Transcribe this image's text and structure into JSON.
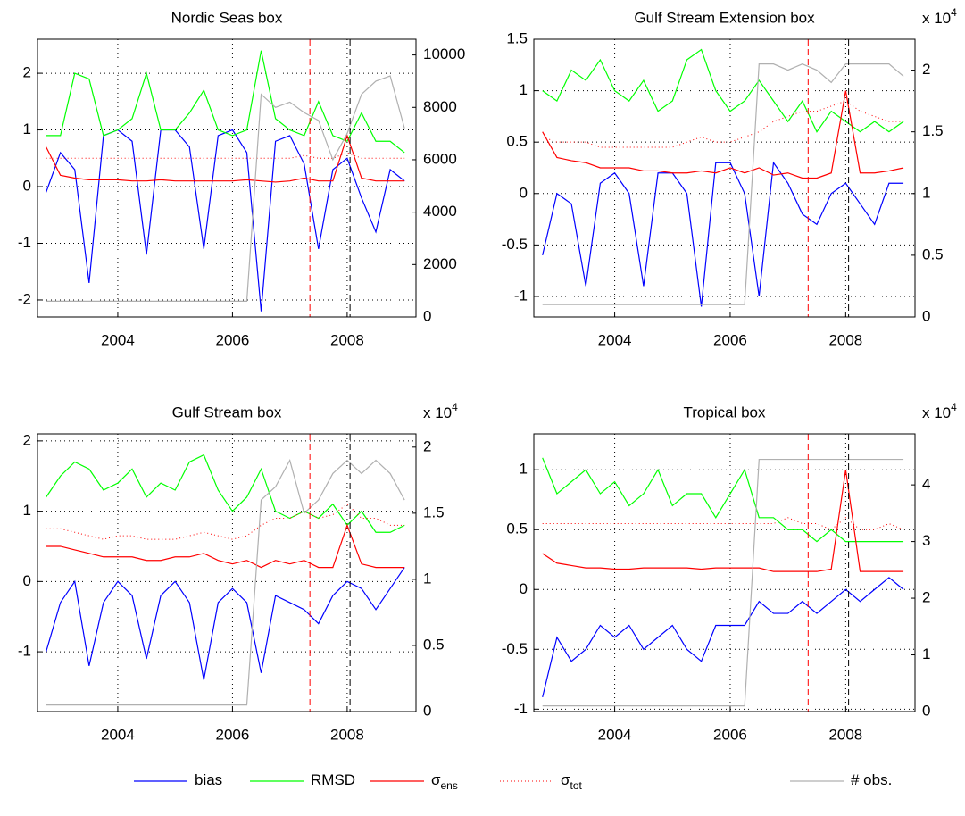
{
  "chart_data": [
    {
      "type": "line",
      "title": "Nordic Seas box",
      "x": [
        2002.75,
        2003,
        2003.25,
        2003.5,
        2003.75,
        2004,
        2004.25,
        2004.5,
        2004.75,
        2005,
        2005.25,
        2005.5,
        2005.75,
        2006,
        2006.25,
        2006.5,
        2006.75,
        2007,
        2007.25,
        2007.5,
        2007.75,
        2008,
        2008.25,
        2008.5,
        2008.75,
        2009
      ],
      "xlim": [
        2002.6,
        2009.2
      ],
      "xticks": [
        2004,
        2006,
        2008
      ],
      "ylim": [
        -2.3,
        2.6
      ],
      "yticks": [
        -2,
        -1,
        0,
        1,
        2
      ],
      "y2lim": [
        0,
        10600
      ],
      "y2ticks": [
        0,
        2000,
        4000,
        6000,
        8000,
        10000
      ],
      "grid": true,
      "legend": "bottom",
      "vlines": [
        {
          "x": 2007.35,
          "color": "#ff0000"
        },
        {
          "x": 2008.05,
          "color": "#000000"
        }
      ],
      "series": [
        {
          "name": "bias",
          "color": "#0000ff",
          "linestyle": "solid",
          "values": [
            -0.1,
            0.6,
            0.3,
            -1.7,
            0.9,
            1.0,
            0.8,
            -1.2,
            1.0,
            1.0,
            0.7,
            -1.1,
            0.9,
            1.0,
            0.6,
            -2.2,
            0.8,
            0.9,
            0.4,
            -1.1,
            0.3,
            0.5,
            -0.2,
            -0.8,
            0.3,
            0.1
          ]
        },
        {
          "name": "RMSD",
          "color": "#00ff00",
          "linestyle": "solid",
          "values": [
            0.9,
            0.9,
            2.0,
            1.9,
            0.9,
            1.0,
            1.2,
            2.0,
            1.0,
            1.0,
            1.3,
            1.7,
            1.0,
            0.9,
            1.0,
            2.4,
            1.2,
            1.0,
            0.9,
            1.5,
            0.9,
            0.8,
            1.3,
            0.8,
            0.8,
            0.6
          ]
        },
        {
          "name": "σ",
          "name_subscript": "ens",
          "color": "#ff0000",
          "linestyle": "solid",
          "values": [
            0.7,
            0.2,
            0.15,
            0.12,
            0.12,
            0.12,
            0.1,
            0.1,
            0.12,
            0.1,
            0.1,
            0.1,
            0.1,
            0.1,
            0.12,
            0.1,
            0.08,
            0.1,
            0.15,
            0.1,
            0.1,
            0.9,
            0.15,
            0.1,
            0.1,
            0.1
          ]
        },
        {
          "name": "σ",
          "name_subscript": "tot",
          "color": "#ff0000",
          "linestyle": "dotted",
          "values": [
            0.5,
            0.5,
            0.5,
            0.5,
            0.5,
            0.5,
            0.5,
            0.5,
            0.5,
            0.5,
            0.5,
            0.5,
            0.5,
            0.5,
            0.5,
            0.5,
            0.5,
            0.5,
            0.55,
            0.5,
            0.5,
            0.6,
            0.5,
            0.5,
            0.5,
            0.5
          ]
        },
        {
          "name": "# obs.",
          "color": "#b0b0b0",
          "linestyle": "solid",
          "axis": "y2",
          "values": [
            600,
            600,
            600,
            600,
            600,
            600,
            600,
            600,
            600,
            600,
            600,
            600,
            600,
            600,
            600,
            8500,
            8000,
            8200,
            7800,
            7500,
            6000,
            7000,
            8500,
            9000,
            9200,
            7200
          ]
        }
      ]
    },
    {
      "type": "line",
      "title": "Gulf Stream Extension box",
      "x": [
        2002.75,
        2003,
        2003.25,
        2003.5,
        2003.75,
        2004,
        2004.25,
        2004.5,
        2004.75,
        2005,
        2005.25,
        2005.5,
        2005.75,
        2006,
        2006.25,
        2006.5,
        2006.75,
        2007,
        2007.25,
        2007.5,
        2007.75,
        2008,
        2008.25,
        2008.5,
        2008.75,
        2009
      ],
      "xlim": [
        2002.6,
        2009.2
      ],
      "xticks": [
        2004,
        2006,
        2008
      ],
      "ylim": [
        -1.2,
        1.5
      ],
      "yticks": [
        -1,
        -0.5,
        0,
        0.5,
        1,
        1.5
      ],
      "y2lim": [
        0,
        2.25
      ],
      "y2ticks": [
        0,
        0.5,
        1,
        1.5,
        2
      ],
      "y2_multiplier": {
        "base": "x 10",
        "exponent": "4"
      },
      "grid": true,
      "vlines": [
        {
          "x": 2007.35,
          "color": "#ff0000"
        },
        {
          "x": 2008.05,
          "color": "#000000"
        }
      ],
      "series": [
        {
          "name": "bias",
          "color": "#0000ff",
          "linestyle": "solid",
          "values": [
            -0.6,
            0.0,
            -0.1,
            -0.9,
            0.1,
            0.2,
            0.0,
            -0.9,
            0.2,
            0.2,
            0.0,
            -1.1,
            0.3,
            0.3,
            0.0,
            -1.0,
            0.3,
            0.1,
            -0.2,
            -0.3,
            0.0,
            0.1,
            -0.1,
            -0.3,
            0.1,
            0.1
          ]
        },
        {
          "name": "RMSD",
          "color": "#00ff00",
          "linestyle": "solid",
          "values": [
            1.0,
            0.9,
            1.2,
            1.1,
            1.3,
            1.0,
            0.9,
            1.1,
            0.8,
            0.9,
            1.3,
            1.4,
            1.0,
            0.8,
            0.9,
            1.1,
            0.9,
            0.7,
            0.9,
            0.6,
            0.8,
            0.7,
            0.6,
            0.7,
            0.6,
            0.7
          ]
        },
        {
          "name": "σ",
          "name_subscript": "ens",
          "color": "#ff0000",
          "linestyle": "solid",
          "values": [
            0.6,
            0.35,
            0.32,
            0.3,
            0.25,
            0.25,
            0.25,
            0.22,
            0.22,
            0.2,
            0.2,
            0.22,
            0.2,
            0.25,
            0.2,
            0.25,
            0.18,
            0.2,
            0.15,
            0.15,
            0.2,
            1.0,
            0.2,
            0.2,
            0.22,
            0.25
          ]
        },
        {
          "name": "σ",
          "name_subscript": "tot",
          "color": "#ff0000",
          "linestyle": "dotted",
          "values": [
            0.55,
            0.5,
            0.5,
            0.5,
            0.45,
            0.45,
            0.45,
            0.45,
            0.45,
            0.45,
            0.5,
            0.55,
            0.5,
            0.5,
            0.55,
            0.6,
            0.7,
            0.75,
            0.8,
            0.8,
            0.85,
            0.9,
            0.8,
            0.75,
            0.7,
            0.7
          ]
        },
        {
          "name": "# obs.",
          "color": "#b0b0b0",
          "linestyle": "solid",
          "axis": "y2",
          "values": [
            0.1,
            0.1,
            0.1,
            0.1,
            0.1,
            0.1,
            0.1,
            0.1,
            0.1,
            0.1,
            0.1,
            0.1,
            0.1,
            0.1,
            0.1,
            2.05,
            2.05,
            2.0,
            2.05,
            2.0,
            1.9,
            2.05,
            2.05,
            2.05,
            2.05,
            1.95
          ]
        }
      ]
    },
    {
      "type": "line",
      "title": "Gulf Stream box",
      "x": [
        2002.75,
        2003,
        2003.25,
        2003.5,
        2003.75,
        2004,
        2004.25,
        2004.5,
        2004.75,
        2005,
        2005.25,
        2005.5,
        2005.75,
        2006,
        2006.25,
        2006.5,
        2006.75,
        2007,
        2007.25,
        2007.5,
        2007.75,
        2008,
        2008.25,
        2008.5,
        2008.75,
        2009
      ],
      "xlim": [
        2002.6,
        2009.2
      ],
      "xticks": [
        2004,
        2006,
        2008
      ],
      "ylim": [
        -1.85,
        2.1
      ],
      "yticks": [
        -1,
        0,
        1,
        2
      ],
      "y2lim": [
        0,
        2.1
      ],
      "y2ticks": [
        0,
        0.5,
        1,
        1.5,
        2
      ],
      "y2_multiplier": {
        "base": "x 10",
        "exponent": "4"
      },
      "grid": true,
      "vlines": [
        {
          "x": 2007.35,
          "color": "#ff0000"
        },
        {
          "x": 2008.05,
          "color": "#000000"
        }
      ],
      "series": [
        {
          "name": "bias",
          "color": "#0000ff",
          "linestyle": "solid",
          "values": [
            -1.0,
            -0.3,
            0.0,
            -1.2,
            -0.3,
            0.0,
            -0.2,
            -1.1,
            -0.2,
            0.0,
            -0.3,
            -1.4,
            -0.3,
            -0.1,
            -0.3,
            -1.3,
            -0.2,
            -0.3,
            -0.4,
            -0.6,
            -0.2,
            0.0,
            -0.1,
            -0.4,
            -0.1,
            0.2
          ]
        },
        {
          "name": "RMSD",
          "color": "#00ff00",
          "linestyle": "solid",
          "values": [
            1.2,
            1.5,
            1.7,
            1.6,
            1.3,
            1.4,
            1.6,
            1.2,
            1.4,
            1.3,
            1.7,
            1.8,
            1.3,
            1.0,
            1.2,
            1.6,
            1.0,
            0.9,
            1.0,
            0.9,
            1.1,
            0.8,
            1.0,
            0.7,
            0.7,
            0.8
          ]
        },
        {
          "name": "σ",
          "name_subscript": "ens",
          "color": "#ff0000",
          "linestyle": "solid",
          "values": [
            0.5,
            0.5,
            0.45,
            0.4,
            0.35,
            0.35,
            0.35,
            0.3,
            0.3,
            0.35,
            0.35,
            0.4,
            0.3,
            0.25,
            0.3,
            0.2,
            0.3,
            0.25,
            0.3,
            0.2,
            0.2,
            0.8,
            0.25,
            0.2,
            0.2,
            0.2
          ]
        },
        {
          "name": "σ",
          "name_subscript": "tot",
          "color": "#ff0000",
          "linestyle": "dotted",
          "values": [
            0.75,
            0.75,
            0.7,
            0.65,
            0.6,
            0.65,
            0.65,
            0.6,
            0.6,
            0.6,
            0.65,
            0.7,
            0.65,
            0.6,
            0.65,
            0.8,
            0.9,
            0.9,
            1.0,
            0.9,
            0.95,
            1.1,
            0.9,
            0.9,
            0.8,
            0.8
          ]
        },
        {
          "name": "# obs.",
          "color": "#b0b0b0",
          "linestyle": "solid",
          "axis": "y2",
          "values": [
            0.05,
            0.05,
            0.05,
            0.05,
            0.05,
            0.05,
            0.05,
            0.05,
            0.05,
            0.05,
            0.05,
            0.05,
            0.05,
            0.05,
            0.05,
            1.6,
            1.7,
            1.9,
            1.5,
            1.6,
            1.8,
            1.9,
            1.8,
            1.9,
            1.8,
            1.6
          ]
        }
      ]
    },
    {
      "type": "line",
      "title": "Tropical box",
      "x": [
        2002.75,
        2003,
        2003.25,
        2003.5,
        2003.75,
        2004,
        2004.25,
        2004.5,
        2004.75,
        2005,
        2005.25,
        2005.5,
        2005.75,
        2006,
        2006.25,
        2006.5,
        2006.75,
        2007,
        2007.25,
        2007.5,
        2007.75,
        2008,
        2008.25,
        2008.5,
        2008.75,
        2009
      ],
      "xlim": [
        2002.6,
        2009.2
      ],
      "xticks": [
        2004,
        2006,
        2008
      ],
      "ylim": [
        -1.02,
        1.3
      ],
      "yticks": [
        -1,
        -0.5,
        0,
        0.5,
        1
      ],
      "y2lim": [
        0,
        4.9
      ],
      "y2ticks": [
        0,
        1,
        2,
        3,
        4
      ],
      "y2_multiplier": {
        "base": "x 10",
        "exponent": "4"
      },
      "grid": true,
      "vlines": [
        {
          "x": 2007.35,
          "color": "#ff0000"
        },
        {
          "x": 2008.05,
          "color": "#000000"
        }
      ],
      "series": [
        {
          "name": "bias",
          "color": "#0000ff",
          "linestyle": "solid",
          "values": [
            -0.9,
            -0.4,
            -0.6,
            -0.5,
            -0.3,
            -0.4,
            -0.3,
            -0.5,
            -0.4,
            -0.3,
            -0.5,
            -0.6,
            -0.3,
            -0.3,
            -0.3,
            -0.1,
            -0.2,
            -0.2,
            -0.1,
            -0.2,
            -0.1,
            0.0,
            -0.1,
            0.0,
            0.1,
            0.0
          ]
        },
        {
          "name": "RMSD",
          "color": "#00ff00",
          "linestyle": "solid",
          "values": [
            1.1,
            0.8,
            0.9,
            1.0,
            0.8,
            0.9,
            0.7,
            0.8,
            1.0,
            0.7,
            0.8,
            0.8,
            0.6,
            0.8,
            1.0,
            0.6,
            0.6,
            0.5,
            0.5,
            0.4,
            0.5,
            0.4,
            0.4,
            0.4,
            0.4,
            0.4
          ]
        },
        {
          "name": "σ",
          "name_subscript": "ens",
          "color": "#ff0000",
          "linestyle": "solid",
          "values": [
            0.3,
            0.22,
            0.2,
            0.18,
            0.18,
            0.17,
            0.17,
            0.18,
            0.18,
            0.18,
            0.18,
            0.17,
            0.18,
            0.18,
            0.18,
            0.18,
            0.15,
            0.15,
            0.15,
            0.15,
            0.17,
            1.0,
            0.15,
            0.15,
            0.15,
            0.15
          ]
        },
        {
          "name": "σ",
          "name_subscript": "tot",
          "color": "#ff0000",
          "linestyle": "dotted",
          "values": [
            0.55,
            0.55,
            0.55,
            0.55,
            0.55,
            0.55,
            0.55,
            0.55,
            0.55,
            0.55,
            0.55,
            0.55,
            0.55,
            0.55,
            0.55,
            0.55,
            0.55,
            0.6,
            0.55,
            0.55,
            0.5,
            0.6,
            0.5,
            0.5,
            0.55,
            0.5
          ]
        },
        {
          "name": "# obs.",
          "color": "#b0b0b0",
          "linestyle": "solid",
          "axis": "y2",
          "values": [
            0.1,
            0.1,
            0.1,
            0.1,
            0.1,
            0.1,
            0.1,
            0.1,
            0.1,
            0.1,
            0.1,
            0.1,
            0.1,
            0.1,
            0.1,
            4.45,
            4.45,
            4.45,
            4.45,
            4.45,
            4.45,
            4.45,
            4.45,
            4.45,
            4.45,
            4.45
          ]
        }
      ]
    }
  ]
}
